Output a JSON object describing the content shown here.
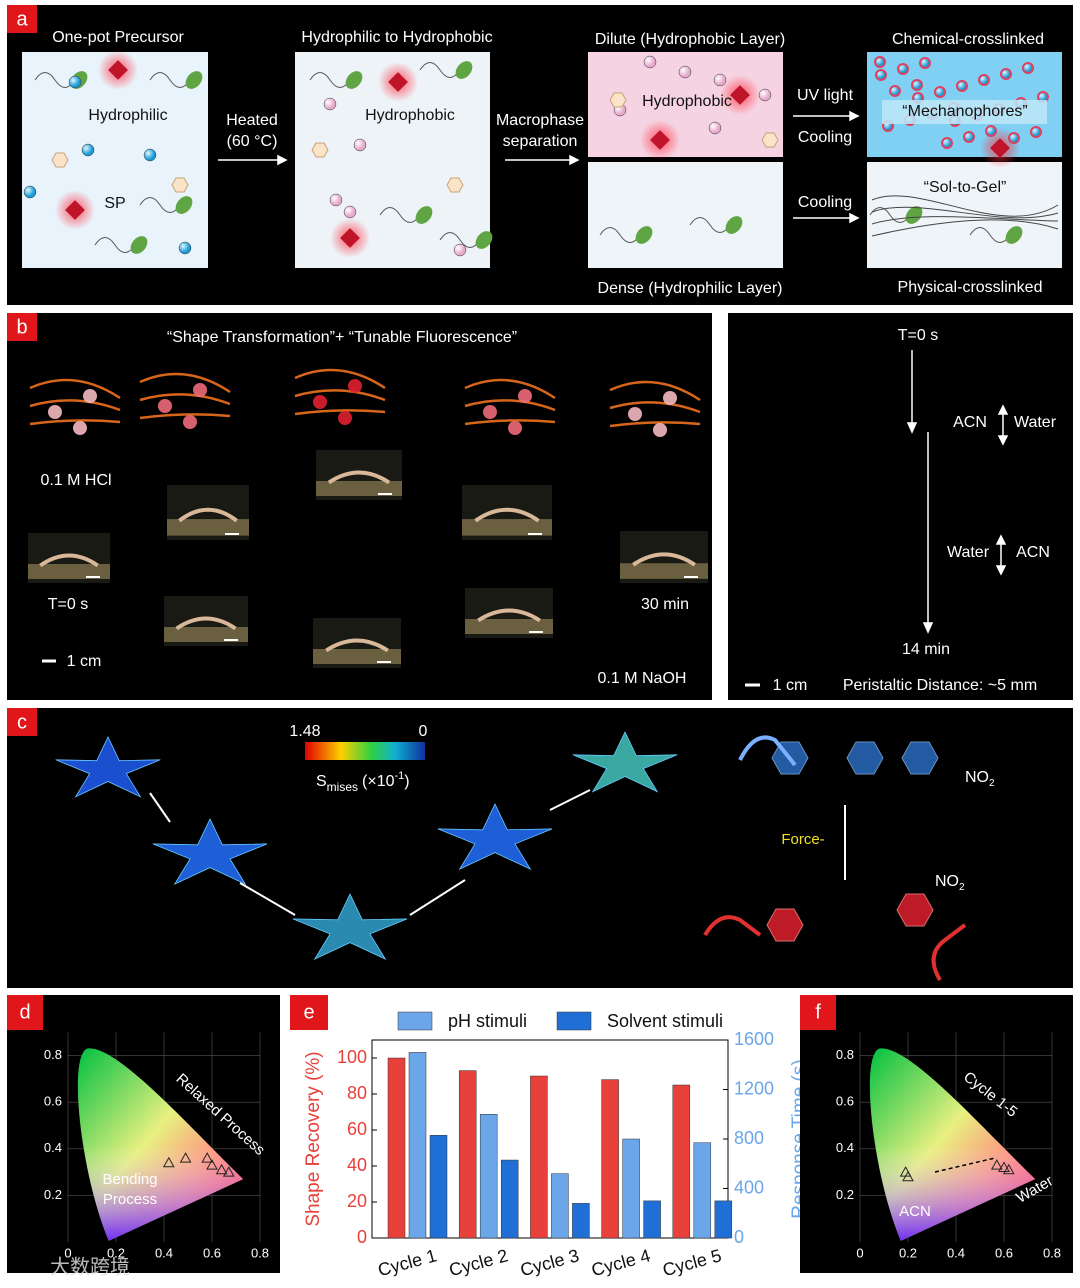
{
  "figure": {
    "a": {
      "label": "a",
      "titles": [
        "One-pot Precursor",
        "Hydrophilic to Hydrophobic",
        "Dilute (Hydrophobic Layer)",
        "Chemical-crosslinked",
        "Dense (Hydrophilic Layer)",
        "Physical-crosslinked"
      ],
      "inner": [
        "Hydrophilic",
        "SP",
        "Hydrophobic",
        "Hydrophobic",
        "“Mechanophores”",
        "“Sol-to-Gel”"
      ],
      "arrows": [
        "Heated",
        "(60 °C)",
        "Macrophase",
        "separation",
        "UV light",
        "Cooling",
        "Cooling"
      ]
    },
    "b": {
      "label": "b",
      "title": "“Shape Transformation”+ “Tunable Fluorescence”",
      "left": [
        "0.1 M HCl",
        "T=0 s",
        "1 cm",
        "30 min",
        "0.1 M NaOH"
      ],
      "right": [
        "T=0 s",
        "ACN",
        "Water",
        "Water",
        "ACN",
        "14 min",
        "1 cm",
        "Peristaltic Distance: ~5 mm"
      ]
    },
    "c": {
      "label": "c",
      "colorbar": [
        "1.48",
        "0"
      ],
      "stress": [
        "S",
        "mises",
        "(×10",
        "-1",
        ")"
      ],
      "force": "Force-",
      "groups": [
        "NO",
        "2",
        "NO",
        "2"
      ]
    },
    "d": {
      "label": "d",
      "xticks": [
        0,
        0.2,
        0.4,
        0.6,
        0.8
      ],
      "yticks": [
        0.2,
        0.4,
        0.6,
        0.8
      ],
      "annotations": [
        "Relaxed Process",
        "Bending",
        "Process"
      ]
    },
    "e": {
      "label": "e"
    },
    "f": {
      "label": "f",
      "xticks": [
        0,
        0.2,
        0.4,
        0.6,
        0.8
      ],
      "yticks": [
        0.2,
        0.4,
        0.6,
        0.8
      ],
      "annotations": [
        "Cycle 1-5",
        "Water",
        "ACN"
      ]
    },
    "watermark": "大数跨境"
  },
  "chart_data": {
    "type": "bar",
    "categories": [
      "Cycle 1",
      "Cycle 2",
      "Cycle 3",
      "Cycle 4",
      "Cycle 5"
    ],
    "series": [
      {
        "color": "#e8413c",
        "values": [
          100,
          93,
          90,
          88,
          85
        ]
      },
      {
        "name": "pH stimuli",
        "color": "#6aa6e8",
        "axis": "y2",
        "values": [
          1500,
          1000,
          520,
          800,
          770
        ]
      },
      {
        "name": "Solvent stimuli",
        "color": "#1f6fd6",
        "axis": "y2",
        "values": [
          830,
          630,
          280,
          300,
          300
        ]
      }
    ],
    "ylabel": "Shape Recovery (%)",
    "y2label": "Response Time (s)",
    "ylim": [
      0,
      110
    ],
    "yticks": [
      0,
      20,
      40,
      60,
      80,
      100
    ],
    "y2lim": [
      0,
      1600
    ],
    "y2ticks": [
      0,
      400,
      800,
      1200,
      1600
    ]
  }
}
